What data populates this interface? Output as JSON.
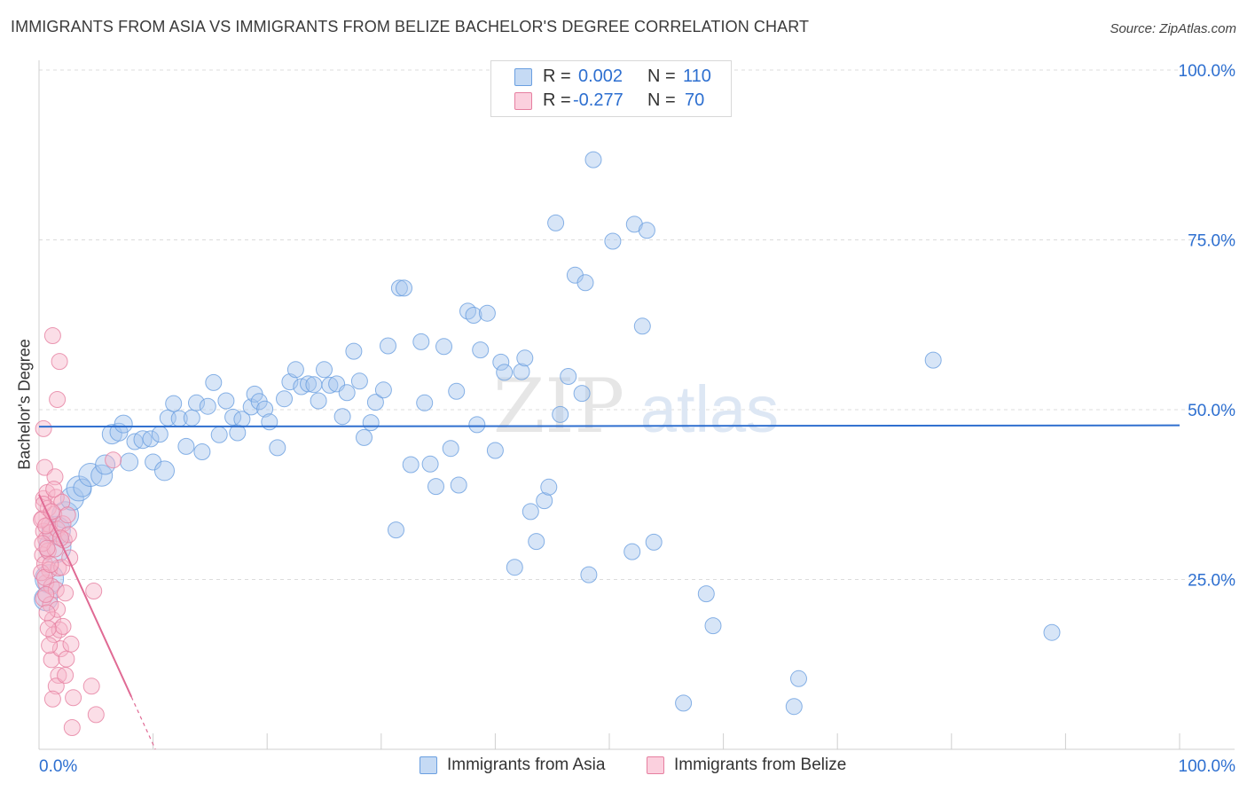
{
  "title": "IMMIGRANTS FROM ASIA VS IMMIGRANTS FROM BELIZE BACHELOR'S DEGREE CORRELATION CHART",
  "source": "Source: ZipAtlas.com",
  "watermark": {
    "zip": "ZIP",
    "atlas": "atlas"
  },
  "legend": {
    "rows": [
      {
        "r_label": "R =",
        "r_value": "0.002",
        "n_label": "N =",
        "n_value": "110",
        "color": "#a7c6ee"
      },
      {
        "r_label": "R =",
        "r_value": "-0.277",
        "n_label": "N =",
        "n_value": "70",
        "color": "#f6b5c9"
      }
    ]
  },
  "bottom_legend": {
    "asia": {
      "label": "Immigrants from Asia",
      "color": "#a7c6ee"
    },
    "belize": {
      "label": "Immigrants from Belize",
      "color": "#f6b5c9"
    }
  },
  "chart_data": {
    "type": "scatter",
    "title": "IMMIGRANTS FROM ASIA VS IMMIGRANTS FROM BELIZE BACHELOR'S DEGREE CORRELATION CHART",
    "xlabel": "",
    "ylabel": "Bachelor's Degree",
    "xlim": [
      0,
      100
    ],
    "ylim": [
      0,
      100
    ],
    "x_tick_labels": [
      {
        "value": 0,
        "label": "0.0%"
      },
      {
        "value": 100,
        "label": "100.0%"
      }
    ],
    "y_tick_labels": [
      {
        "value": 100,
        "label": "100.0%"
      },
      {
        "value": 75,
        "label": "75.0%"
      },
      {
        "value": 50,
        "label": "50.0%"
      },
      {
        "value": 25,
        "label": "25.0%"
      }
    ],
    "x_minor_ticks": [
      10,
      20,
      30,
      40,
      50,
      60,
      70,
      80,
      90,
      100
    ],
    "series": [
      {
        "name": "Immigrants from Asia",
        "color": "#a7c6ee",
        "stroke": "#6a9fe0",
        "trend": {
          "x": [
            0,
            100
          ],
          "y": [
            47.5,
            47.7
          ],
          "color": "#2f6fcf"
        },
        "points": [
          [
            0.9,
            25.1,
            16
          ],
          [
            0.6,
            22.1,
            13
          ],
          [
            1.4,
            29.8,
            18
          ],
          [
            1.5,
            32.2,
            16
          ],
          [
            2.3,
            34.5,
            15
          ],
          [
            2.9,
            36.9,
            13
          ],
          [
            3.5,
            38.4,
            14
          ],
          [
            3.8,
            38.5,
            10
          ],
          [
            4.5,
            40.4,
            13
          ],
          [
            5.5,
            40.3,
            12
          ],
          [
            5.8,
            41.9,
            11
          ],
          [
            6.4,
            46.4,
            11
          ],
          [
            7.0,
            46.7,
            10
          ],
          [
            7.4,
            47.9,
            10
          ],
          [
            7.9,
            42.3,
            10
          ],
          [
            8.4,
            45.3,
            9
          ],
          [
            9.1,
            45.6,
            10
          ],
          [
            9.8,
            45.7,
            9
          ],
          [
            10.0,
            42.3,
            9
          ],
          [
            10.6,
            46.4,
            9
          ],
          [
            11.0,
            41.0,
            11
          ],
          [
            11.3,
            48.8,
            9
          ],
          [
            11.8,
            50.9,
            9
          ],
          [
            12.3,
            48.7,
            9
          ],
          [
            12.9,
            44.6,
            9
          ],
          [
            13.4,
            48.8,
            9
          ],
          [
            13.8,
            51.0,
            9
          ],
          [
            14.3,
            43.8,
            9
          ],
          [
            14.8,
            50.5,
            9
          ],
          [
            15.3,
            54.0,
            9
          ],
          [
            15.8,
            46.3,
            9
          ],
          [
            16.4,
            51.3,
            9
          ],
          [
            17.0,
            48.9,
            9
          ],
          [
            17.4,
            46.6,
            9
          ],
          [
            17.8,
            48.6,
            9
          ],
          [
            18.6,
            50.4,
            9
          ],
          [
            18.9,
            52.3,
            9
          ],
          [
            19.3,
            51.2,
            9
          ],
          [
            19.8,
            50.1,
            9
          ],
          [
            20.2,
            48.2,
            9
          ],
          [
            20.9,
            44.4,
            9
          ],
          [
            21.5,
            51.6,
            9
          ],
          [
            22.0,
            54.1,
            9
          ],
          [
            22.5,
            55.9,
            9
          ],
          [
            23.0,
            53.4,
            9
          ],
          [
            23.6,
            53.8,
            9
          ],
          [
            24.1,
            53.7,
            9
          ],
          [
            24.5,
            51.3,
            9
          ],
          [
            25.0,
            55.9,
            9
          ],
          [
            25.5,
            53.6,
            9
          ],
          [
            26.1,
            53.8,
            9
          ],
          [
            26.6,
            49.0,
            9
          ],
          [
            27.0,
            52.5,
            9
          ],
          [
            27.6,
            58.6,
            9
          ],
          [
            28.1,
            54.2,
            9
          ],
          [
            28.5,
            45.9,
            9
          ],
          [
            29.1,
            48.1,
            9
          ],
          [
            29.5,
            51.1,
            9
          ],
          [
            30.2,
            52.9,
            9
          ],
          [
            30.6,
            59.4,
            9
          ],
          [
            31.3,
            32.3,
            9
          ],
          [
            31.6,
            67.9,
            9
          ],
          [
            32.0,
            67.9,
            9
          ],
          [
            32.6,
            41.9,
            9
          ],
          [
            33.5,
            60.0,
            9
          ],
          [
            33.8,
            51.0,
            9
          ],
          [
            34.3,
            42.0,
            9
          ],
          [
            34.8,
            38.7,
            9
          ],
          [
            35.5,
            59.3,
            9
          ],
          [
            36.1,
            44.3,
            9
          ],
          [
            36.6,
            52.7,
            9
          ],
          [
            36.8,
            38.9,
            9
          ],
          [
            37.6,
            64.5,
            9
          ],
          [
            38.1,
            63.9,
            9
          ],
          [
            38.4,
            47.8,
            9
          ],
          [
            38.7,
            58.8,
            9
          ],
          [
            39.3,
            64.2,
            9
          ],
          [
            40.0,
            44.0,
            9
          ],
          [
            40.5,
            57.0,
            9
          ],
          [
            40.8,
            55.5,
            9
          ],
          [
            41.7,
            26.8,
            9
          ],
          [
            42.3,
            55.6,
            9
          ],
          [
            42.6,
            57.6,
            9
          ],
          [
            43.1,
            35.0,
            9
          ],
          [
            43.6,
            30.6,
            9
          ],
          [
            44.3,
            36.6,
            9
          ],
          [
            44.7,
            38.6,
            9
          ],
          [
            45.3,
            77.5,
            9
          ],
          [
            45.7,
            49.3,
            9
          ],
          [
            46.4,
            54.9,
            9
          ],
          [
            47.0,
            69.8,
            9
          ],
          [
            47.6,
            52.4,
            9
          ],
          [
            47.9,
            68.7,
            9
          ],
          [
            48.2,
            25.7,
            9
          ],
          [
            48.6,
            86.8,
            9
          ],
          [
            50.3,
            74.8,
            9
          ],
          [
            52.0,
            29.1,
            9
          ],
          [
            52.2,
            77.3,
            9
          ],
          [
            52.9,
            62.3,
            9
          ],
          [
            53.3,
            76.4,
            9
          ],
          [
            53.9,
            30.5,
            9
          ],
          [
            56.5,
            6.8,
            9
          ],
          [
            58.5,
            22.9,
            9
          ],
          [
            59.1,
            18.2,
            9
          ],
          [
            66.2,
            6.3,
            9
          ],
          [
            66.6,
            10.4,
            9
          ],
          [
            78.4,
            57.3,
            9
          ],
          [
            88.8,
            17.2,
            9
          ]
        ]
      },
      {
        "name": "Immigrants from Belize",
        "color": "#f6b5c9",
        "stroke": "#e67fa0",
        "trend": {
          "x": [
            0,
            10.2
          ],
          "y": [
            37.5,
            0.0
          ],
          "solid_until_x": 8.1,
          "color": "#e06a94"
        },
        "points": [
          [
            0.3,
            28.6,
            9
          ],
          [
            0.4,
            47.2,
            9
          ],
          [
            0.5,
            41.5,
            9
          ],
          [
            0.4,
            36.9,
            9
          ],
          [
            0.3,
            34.0,
            9
          ],
          [
            0.4,
            32.1,
            9
          ],
          [
            0.6,
            30.9,
            9
          ],
          [
            0.5,
            27.3,
            9
          ],
          [
            0.6,
            24.5,
            9
          ],
          [
            0.4,
            22.2,
            9
          ],
          [
            0.7,
            37.8,
            9
          ],
          [
            0.8,
            35.5,
            9
          ],
          [
            0.9,
            33.1,
            9
          ],
          [
            1.0,
            31.9,
            9
          ],
          [
            0.8,
            29.2,
            9
          ],
          [
            0.9,
            26.4,
            9
          ],
          [
            1.1,
            24.0,
            9
          ],
          [
            1.0,
            21.3,
            9
          ],
          [
            1.2,
            19.1,
            9
          ],
          [
            1.3,
            16.9,
            9
          ],
          [
            1.1,
            13.2,
            9
          ],
          [
            1.2,
            60.9,
            9
          ],
          [
            1.4,
            40.1,
            9
          ],
          [
            1.5,
            37.1,
            9
          ],
          [
            1.3,
            34.6,
            9
          ],
          [
            1.6,
            32.4,
            9
          ],
          [
            1.4,
            29.5,
            9
          ],
          [
            1.7,
            26.7,
            9
          ],
          [
            1.5,
            23.5,
            9
          ],
          [
            1.6,
            20.6,
            9
          ],
          [
            1.8,
            17.6,
            9
          ],
          [
            1.9,
            14.8,
            9
          ],
          [
            1.7,
            10.9,
            9
          ],
          [
            1.5,
            9.3,
            9
          ],
          [
            1.2,
            7.4,
            9
          ],
          [
            1.8,
            57.1,
            9
          ],
          [
            1.6,
            51.5,
            9
          ],
          [
            2.0,
            36.4,
            9
          ],
          [
            2.1,
            33.2,
            9
          ],
          [
            2.2,
            30.8,
            9
          ],
          [
            2.0,
            26.8,
            9
          ],
          [
            2.3,
            23.0,
            9
          ],
          [
            2.1,
            18.1,
            9
          ],
          [
            2.4,
            13.3,
            9
          ],
          [
            2.3,
            10.9,
            9
          ],
          [
            2.5,
            34.5,
            9
          ],
          [
            2.6,
            31.6,
            9
          ],
          [
            2.7,
            28.2,
            9
          ],
          [
            2.8,
            15.5,
            9
          ],
          [
            2.9,
            3.2,
            9
          ],
          [
            3.0,
            7.6,
            9
          ],
          [
            4.6,
            9.3,
            9
          ],
          [
            4.8,
            23.3,
            9
          ],
          [
            5.0,
            5.1,
            9
          ],
          [
            6.5,
            42.6,
            9
          ],
          [
            0.2,
            33.8,
            9
          ],
          [
            0.3,
            30.3,
            9
          ],
          [
            0.2,
            26.0,
            9
          ],
          [
            0.5,
            25.3,
            9
          ],
          [
            0.6,
            22.8,
            9
          ],
          [
            0.7,
            20.1,
            9
          ],
          [
            0.8,
            17.8,
            9
          ],
          [
            0.9,
            15.3,
            9
          ],
          [
            0.4,
            36.1,
            9
          ],
          [
            0.6,
            32.9,
            9
          ],
          [
            0.7,
            29.6,
            9
          ],
          [
            1.0,
            27.2,
            9
          ],
          [
            1.1,
            35.0,
            9
          ],
          [
            1.3,
            38.3,
            9
          ],
          [
            1.9,
            31.1,
            9
          ]
        ]
      }
    ]
  }
}
